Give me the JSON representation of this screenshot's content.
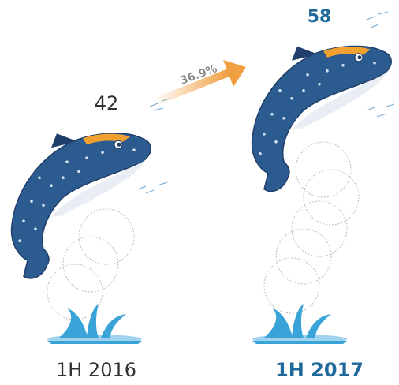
{
  "chart_data": {
    "type": "pictograph",
    "categories": [
      "1H 2016",
      "1H 2017"
    ],
    "values": [
      42,
      58
    ],
    "annotations": [
      "36.9%"
    ],
    "color": "#2b5b8f"
  }
}
